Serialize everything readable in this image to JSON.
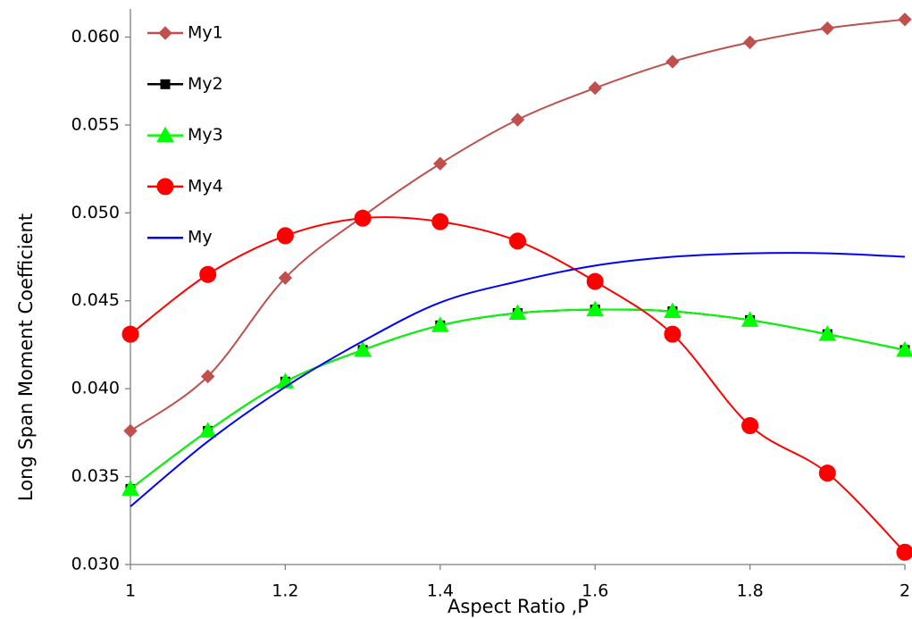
{
  "chart_data": {
    "type": "line",
    "x_label": "Aspect Ratio ,P",
    "y_label": "Long Span Moment Coefficient",
    "x": [
      1,
      1.1,
      1.2,
      1.3,
      1.4,
      1.5,
      1.6,
      1.7,
      1.8,
      1.9,
      2
    ],
    "xlim": [
      1,
      2
    ],
    "xticks": [
      1,
      1.2,
      1.4,
      1.6,
      1.8,
      2
    ],
    "ylim": [
      0.03,
      0.0616
    ],
    "yticks": [
      {
        "value": 0.03,
        "label": "0.030"
      },
      {
        "value": 0.035,
        "label": "0.035"
      },
      {
        "value": 0.04,
        "label": "0.040"
      },
      {
        "value": 0.045,
        "label": "0.045"
      },
      {
        "value": 0.05,
        "label": "0.050"
      },
      {
        "value": 0.055,
        "label": "0.055"
      },
      {
        "value": 0.06,
        "label": "0.060"
      }
    ],
    "grid": false,
    "legend": "top-left",
    "series": [
      {
        "name": "My1",
        "color": "#c0504d",
        "marker": "diamond",
        "values": [
          0.0376,
          0.0407,
          0.0463,
          0.0498,
          0.0528,
          0.0553,
          0.0571,
          0.0586,
          0.0597,
          0.0605,
          0.061
        ]
      },
      {
        "name": "My2",
        "color": "#000000",
        "marker": "square",
        "values": [
          0.0343,
          0.0376,
          0.0404,
          0.0422,
          0.0436,
          0.0443,
          0.0445,
          0.0444,
          0.0439,
          0.0431,
          0.0422
        ]
      },
      {
        "name": "My3",
        "color": "#00ff00",
        "marker": "triangle",
        "values": [
          0.0343,
          0.0376,
          0.0404,
          0.0422,
          0.0436,
          0.0443,
          0.0445,
          0.0444,
          0.0439,
          0.0431,
          0.0422
        ]
      },
      {
        "name": "My4",
        "color": "#ff0000",
        "marker": "circle",
        "values": [
          0.0431,
          0.0465,
          0.0487,
          0.0497,
          0.0495,
          0.0484,
          0.0461,
          0.0431,
          0.0379,
          0.0352,
          0.0307
        ]
      },
      {
        "name": "My",
        "color": "#0000ff",
        "values": [
          0.0333,
          0.037,
          0.0401,
          0.0427,
          0.0449,
          0.0461,
          0.047,
          0.0475,
          0.0477,
          0.0477,
          0.0475
        ]
      }
    ]
  }
}
